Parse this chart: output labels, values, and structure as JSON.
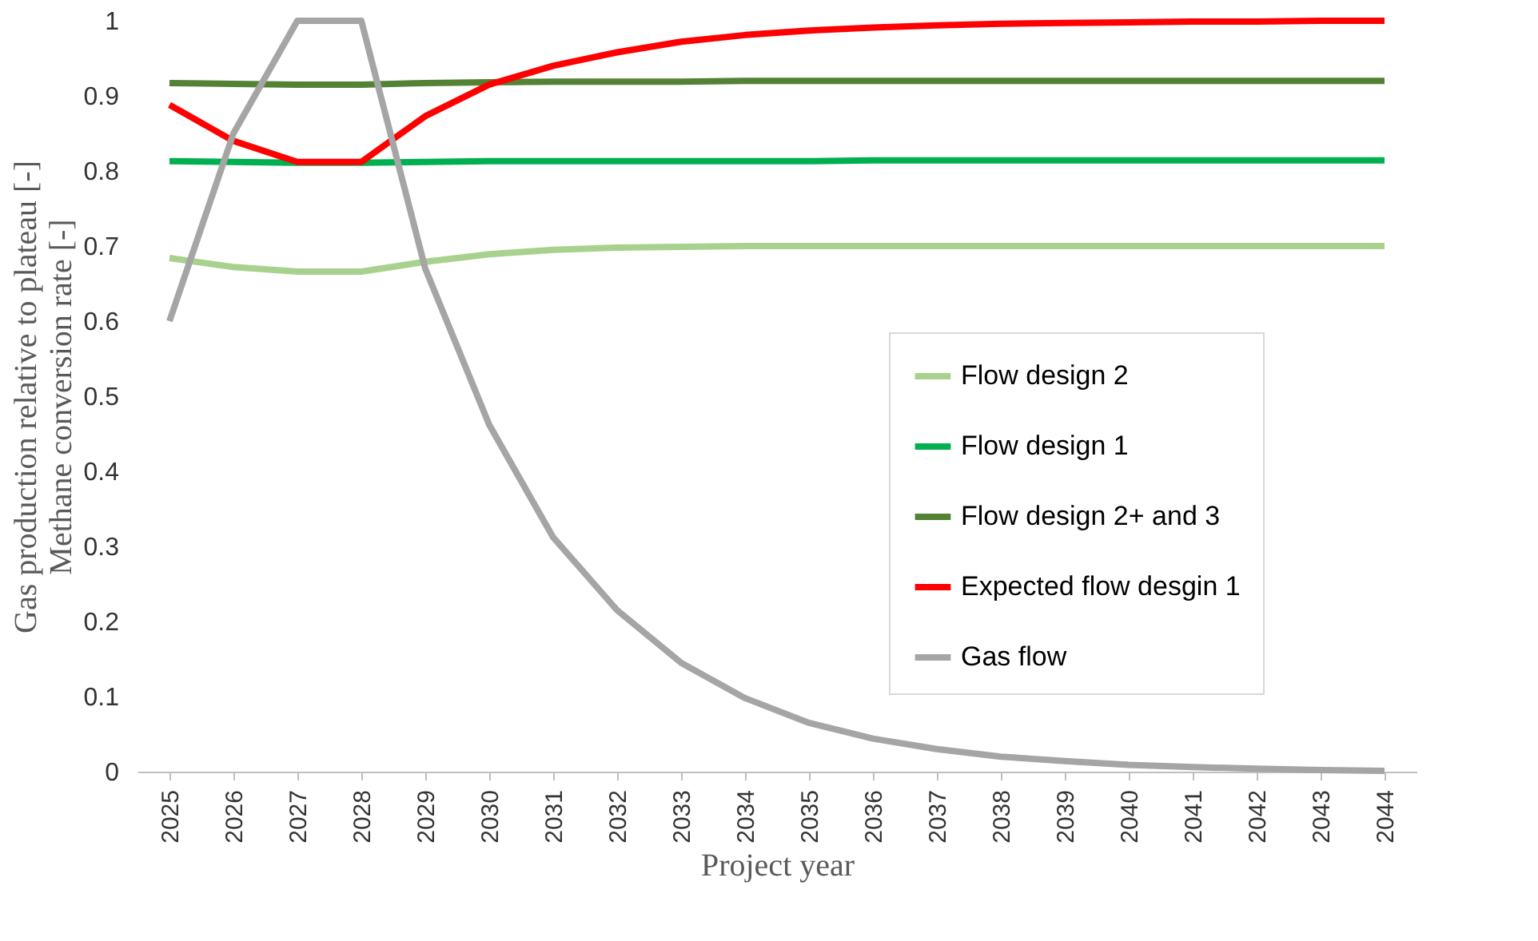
{
  "chart_data": {
    "type": "line",
    "categories": [
      "2025",
      "2026",
      "2027",
      "2028",
      "2029",
      "2030",
      "2031",
      "2032",
      "2033",
      "2034",
      "2035",
      "2036",
      "2037",
      "2038",
      "2039",
      "2040",
      "2041",
      "2042",
      "2043",
      "2044"
    ],
    "series": [
      {
        "name": "Flow design 2",
        "color": "#a9d18e",
        "values": [
          0.684,
          0.672,
          0.666,
          0.666,
          0.679,
          0.689,
          0.695,
          0.698,
          0.699,
          0.7,
          0.7,
          0.7,
          0.7,
          0.7,
          0.7,
          0.7,
          0.7,
          0.7,
          0.7,
          0.7
        ]
      },
      {
        "name": "Flow design 1",
        "color": "#00b050",
        "values": [
          0.813,
          0.812,
          0.811,
          0.811,
          0.812,
          0.813,
          0.813,
          0.813,
          0.813,
          0.813,
          0.813,
          0.814,
          0.814,
          0.814,
          0.814,
          0.814,
          0.814,
          0.814,
          0.814,
          0.814
        ]
      },
      {
        "name": "Flow design 2+ and 3",
        "color": "#548235",
        "values": [
          0.917,
          0.916,
          0.915,
          0.915,
          0.917,
          0.918,
          0.919,
          0.919,
          0.919,
          0.92,
          0.92,
          0.92,
          0.92,
          0.92,
          0.92,
          0.92,
          0.92,
          0.92,
          0.92,
          0.92
        ]
      },
      {
        "name": "Expected flow desgin 1",
        "color": "#ff0000",
        "values": [
          0.888,
          0.84,
          0.812,
          0.812,
          0.873,
          0.915,
          0.94,
          0.958,
          0.972,
          0.981,
          0.987,
          0.991,
          0.994,
          0.996,
          0.997,
          0.998,
          0.999,
          0.999,
          1.0,
          1.0
        ]
      },
      {
        "name": "Gas flow",
        "color": "#a5a5a5",
        "values": [
          0.6,
          0.85,
          1.0,
          1.0,
          0.67,
          0.462,
          0.312,
          0.215,
          0.145,
          0.098,
          0.065,
          0.044,
          0.03,
          0.02,
          0.014,
          0.009,
          0.006,
          0.004,
          0.002,
          0.001
        ]
      }
    ],
    "xlabel": "Project year",
    "ylabel": "Gas production relative to plateau [-]\nMethane conversion rate [-]",
    "ylim": [
      0,
      1
    ],
    "yticks": [
      0,
      0.1,
      0.2,
      0.3,
      0.4,
      0.5,
      0.6,
      0.7,
      0.8,
      0.9,
      1
    ],
    "grid": false,
    "legend": "right",
    "marker": "none",
    "line_style": "solid"
  }
}
